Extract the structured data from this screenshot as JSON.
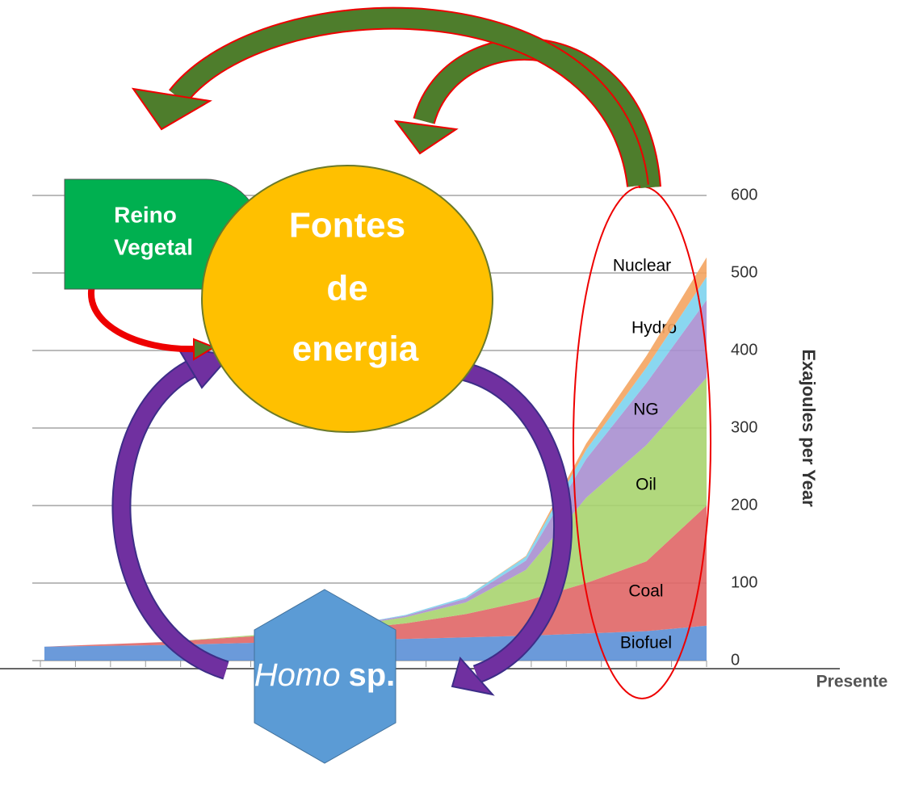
{
  "chart_data": {
    "type": "area",
    "categories": [
      null,
      null,
      null,
      null,
      null,
      null,
      null,
      null,
      null,
      null,
      null,
      null
    ],
    "series": [
      {
        "name": "Biofuel",
        "color": "#5b8fd6",
        "values": [
          18,
          19,
          20,
          22,
          24,
          26,
          28,
          30,
          32,
          35,
          38,
          45
        ]
      },
      {
        "name": "Coal",
        "color": "#e06666",
        "values": [
          0,
          2,
          4,
          7,
          10,
          14,
          20,
          30,
          45,
          65,
          90,
          155
        ]
      },
      {
        "name": "Oil",
        "color": "#a8d46f",
        "values": [
          0,
          0,
          0,
          1,
          2,
          4,
          8,
          15,
          40,
          110,
          150,
          165
        ]
      },
      {
        "name": "NG",
        "color": "#a88fd0",
        "values": [
          0,
          0,
          0,
          0,
          0,
          1,
          2,
          5,
          12,
          50,
          80,
          100
        ]
      },
      {
        "name": "Hydro",
        "color": "#7dd3ee",
        "values": [
          0,
          0,
          0,
          0,
          0,
          0,
          1,
          2,
          5,
          12,
          20,
          30
        ]
      },
      {
        "name": "Nuclear",
        "color": "#f4a460",
        "values": [
          0,
          0,
          0,
          0,
          0,
          0,
          0,
          0,
          1,
          8,
          15,
          25
        ]
      }
    ],
    "ylabel": "Exajoules per Year",
    "xlabel": "Presente",
    "ylim": [
      0,
      600
    ],
    "yticks": [
      0,
      100,
      200,
      300,
      400,
      500,
      600
    ],
    "grid": true,
    "stacked": true
  },
  "diagram": {
    "nodes": [
      {
        "label": [
          "Reino",
          "Vegetal"
        ]
      },
      {
        "label": [
          "Fontes",
          "de",
          "energia"
        ]
      },
      {
        "label": [
          "Homo",
          "sp."
        ]
      }
    ]
  }
}
